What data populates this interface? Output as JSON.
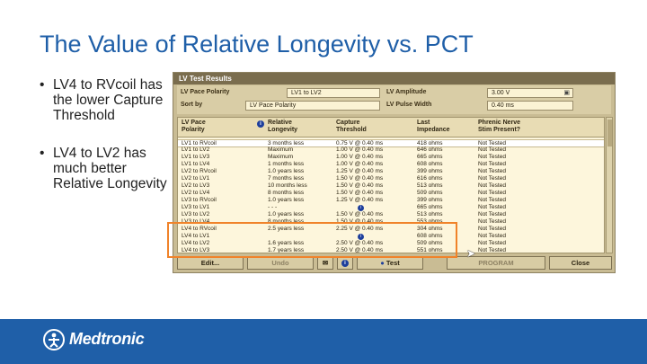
{
  "slide": {
    "title": "The Value of Relative Longevity vs. PCT",
    "bullets": [
      "LV4 to RVcoil has the lower Capture Threshold",
      "LV4 to LV2 has much better Relative Longevity"
    ]
  },
  "window": {
    "title": "LV Test Results",
    "controls": {
      "pace_polarity_label": "LV Pace Polarity",
      "pace_polarity_value": "LV1 to LV2",
      "amplitude_label": "LV Amplitude",
      "amplitude_value": "3.00 V",
      "sort_label": "Sort by",
      "sort_value": "LV Pace Polarity",
      "pulse_width_label": "LV Pulse Width",
      "pulse_width_value": "0.40 ms"
    },
    "headers": {
      "pace": "LV Pace\nPolarity",
      "longevity": "Relative\nLongevity",
      "threshold": "Capture\nThreshold",
      "impedance": "Last\nImpedance",
      "phrenic": "Phrenic Nerve\nStim Present?"
    },
    "rows": [
      {
        "pace": "LV1 to RVcoil",
        "longevity": "3 months less",
        "threshold": "0.75 V @ 0.40 ms",
        "impedance": "418 ohms",
        "phrenic": "Not Tested"
      },
      {
        "pace": "LV1 to LV2",
        "longevity": "Maximum",
        "threshold": "1.00 V @ 0.40 ms",
        "impedance": "646 ohms",
        "phrenic": "Not Tested"
      },
      {
        "pace": "LV1 to LV3",
        "longevity": "Maximum",
        "threshold": "1.00 V @ 0.40 ms",
        "impedance": "665 ohms",
        "phrenic": "Not Tested"
      },
      {
        "pace": "LV1 to LV4",
        "longevity": "1 months less",
        "threshold": "1.00 V @ 0.40 ms",
        "impedance": "608 ohms",
        "phrenic": "Not Tested"
      },
      {
        "pace": "LV2 to RVcoil",
        "longevity": "1.0 years less",
        "threshold": "1.25 V @ 0.40 ms",
        "impedance": "399 ohms",
        "phrenic": "Not Tested"
      },
      {
        "pace": "LV2 to LV1",
        "longevity": "7 months less",
        "threshold": "1.50 V @ 0.40 ms",
        "impedance": "616 ohms",
        "phrenic": "Not Tested"
      },
      {
        "pace": "LV2 to LV3",
        "longevity": "10 months less",
        "threshold": "1.50 V @ 0.40 ms",
        "impedance": "513 ohms",
        "phrenic": "Not Tested"
      },
      {
        "pace": "LV2 to LV4",
        "longevity": "8 months less",
        "threshold": "1.50 V @ 0.40 ms",
        "impedance": "509 ohms",
        "phrenic": "Not Tested"
      },
      {
        "pace": "LV3 to RVcoil",
        "longevity": "1.0 years less",
        "threshold": "1.25 V @ 0.40 ms",
        "impedance": "399 ohms",
        "phrenic": "Not Tested"
      },
      {
        "pace": "LV3 to LV1",
        "longevity": "- - -",
        "threshold": "",
        "impedance": "665 ohms",
        "phrenic": "Not Tested",
        "threshold_icon": "i"
      },
      {
        "pace": "LV3 to LV2",
        "longevity": "1.0 years less",
        "threshold": "1.50 V @ 0.40 ms",
        "impedance": "513 ohms",
        "phrenic": "Not Tested"
      },
      {
        "pace": "LV3 to LV4",
        "longevity": "8 months less",
        "threshold": "1.50 V @ 0.40 ms",
        "impedance": "553 ohms",
        "phrenic": "Not Tested"
      },
      {
        "pace": "LV4 to RVcoil",
        "longevity": "2.5 years less",
        "threshold": "2.25 V @ 0.40 ms",
        "impedance": "304 ohms",
        "phrenic": "Not Tested"
      },
      {
        "pace": "LV4 to LV1",
        "longevity": "",
        "threshold": "",
        "impedance": "608 ohms",
        "phrenic": "Not Tested",
        "threshold_icon": "i"
      },
      {
        "pace": "LV4 to LV2",
        "longevity": "1.6 years less",
        "threshold": "2.50 V @ 0.40 ms",
        "impedance": "509 ohms",
        "phrenic": "Not Tested"
      },
      {
        "pace": "LV4 to LV3",
        "longevity": "1.7 years less",
        "threshold": "2.50 V @ 0.40 ms",
        "impedance": "551 ohms",
        "phrenic": "Not Tested"
      }
    ],
    "buttons": {
      "edit": "Edit...",
      "undo": "Undo",
      "info": "i",
      "test": "Test",
      "program": "PROGRAM",
      "close": "Close"
    }
  },
  "footer": {
    "logo_text": "Medtronic"
  },
  "colors": {
    "brand_blue": "#1f5fa8",
    "highlight": "#f0832a"
  }
}
